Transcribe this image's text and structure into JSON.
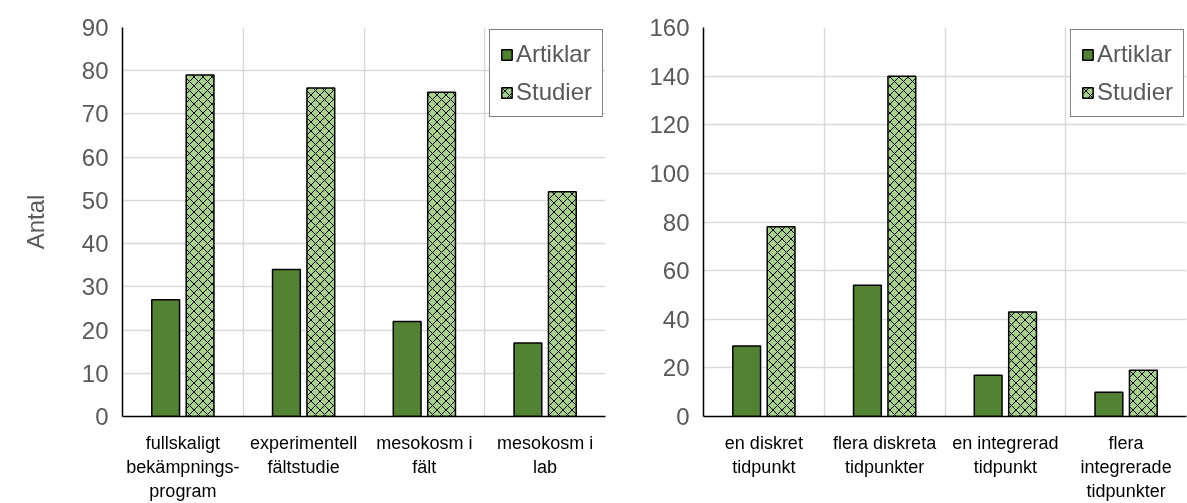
{
  "chart_data": [
    {
      "type": "bar",
      "ylabel": "Antal",
      "categories": [
        "fullskaligt bekämpnings-program",
        "experimentell fältstudie",
        "mesokosm i fält",
        "mesokosm i lab"
      ],
      "series": [
        {
          "name": "Artiklar",
          "color": "#548235",
          "values": [
            27,
            34,
            22,
            17
          ]
        },
        {
          "name": "Studier",
          "color": "#a9d18e",
          "values": [
            79,
            76,
            75,
            52
          ]
        }
      ],
      "ylim": [
        0,
        90
      ],
      "yticks": [
        0,
        10,
        20,
        30,
        40,
        50,
        60,
        70,
        80,
        90
      ],
      "grid": true,
      "legend": "top right"
    },
    {
      "type": "bar",
      "categories": [
        "en diskret tidpunkt",
        "flera diskreta tidpunkter",
        "en integrerad tidpunkt",
        "flera integrerade tidpunkter"
      ],
      "series": [
        {
          "name": "Artiklar",
          "color": "#548235",
          "values": [
            29,
            54,
            17,
            10
          ]
        },
        {
          "name": "Studier",
          "color": "#a9d18e",
          "values": [
            78,
            140,
            43,
            19
          ]
        }
      ],
      "ylim": [
        0,
        160
      ],
      "yticks": [
        0,
        20,
        40,
        60,
        80,
        100,
        120,
        140,
        160
      ],
      "grid": true,
      "legend": "top right"
    }
  ]
}
